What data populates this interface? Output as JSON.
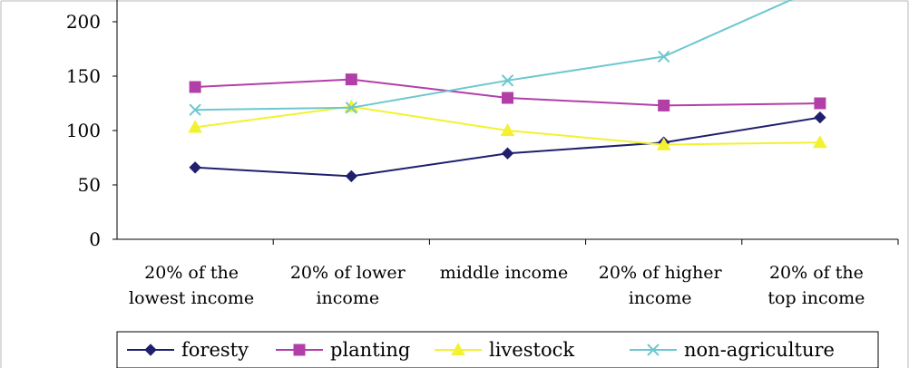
{
  "chart_data": {
    "type": "line",
    "title": "",
    "xlabel": "",
    "ylabel": "",
    "categories": [
      [
        "20% of the",
        "lowest income"
      ],
      [
        "20% of lower",
        "income"
      ],
      [
        "middle income"
      ],
      [
        "20% of higher",
        "income"
      ],
      [
        "20% of the",
        "top income"
      ]
    ],
    "y_ticks": [
      "0",
      "50",
      "100",
      "150",
      "200"
    ],
    "ylim": [
      0,
      220
    ],
    "grid": false,
    "legend_position": "bottom",
    "series": [
      {
        "name": "foresty",
        "values": [
          66,
          58,
          79,
          89,
          112
        ],
        "color": "#1f1f6e",
        "marker": "diamond"
      },
      {
        "name": "planting",
        "values": [
          140,
          147,
          130,
          123,
          125
        ],
        "color": "#b23fa8",
        "marker": "square"
      },
      {
        "name": "livestock",
        "values": [
          103,
          122,
          100,
          87,
          89
        ],
        "color": "#f2f230",
        "marker": "triangle"
      },
      {
        "name": "non-agriculture",
        "values": [
          119,
          121,
          146,
          168,
          232
        ],
        "color": "#6cc7cf",
        "marker": "x"
      }
    ]
  }
}
